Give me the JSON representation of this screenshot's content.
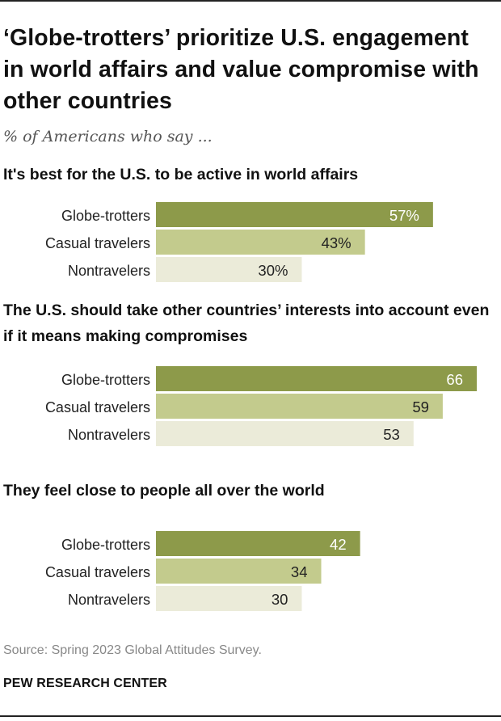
{
  "title": "‘Globe-trotters’ prioritize U.S. engagement in world affairs and value compromise with other countries",
  "subtitle": "% of Americans who say ...",
  "source": "Source: Spring 2023 Global Attitudes Survey.",
  "brand": "PEW RESEARCH CENTER",
  "colors": {
    "globe_trotters": "#8d9a4a",
    "casual_travelers": "#c3cb8d",
    "nontravelers": "#ebebd9"
  },
  "chart_data": [
    {
      "type": "bar",
      "title": "It's best for the U.S. to be active in world affairs",
      "categories": [
        "Globe-trotters",
        "Casual travelers",
        "Nontravelers"
      ],
      "values": [
        57,
        43,
        30
      ],
      "labels": [
        "57%",
        "43%",
        "30%"
      ],
      "xlim": [
        0,
        66
      ]
    },
    {
      "type": "bar",
      "title": "The U.S. should take other countries’ interests into account even if it means making compromises",
      "categories": [
        "Globe-trotters",
        "Casual travelers",
        "Nontravelers"
      ],
      "values": [
        66,
        59,
        53
      ],
      "labels": [
        "66",
        "59",
        "53"
      ],
      "xlim": [
        0,
        66
      ]
    },
    {
      "type": "bar",
      "title": "They feel close to people all over the world",
      "categories": [
        "Globe-trotters",
        "Casual travelers",
        "Nontravelers"
      ],
      "values": [
        42,
        34,
        30
      ],
      "labels": [
        "42",
        "34",
        "30"
      ],
      "xlim": [
        0,
        66
      ]
    }
  ]
}
